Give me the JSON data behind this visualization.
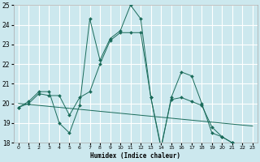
{
  "xlabel": "Humidex (Indice chaleur)",
  "background_color": "#cce8ee",
  "grid_color": "#ffffff",
  "line_color": "#1a6b5a",
  "x_values": [
    0,
    1,
    2,
    3,
    4,
    5,
    6,
    7,
    8,
    9,
    10,
    11,
    12,
    13,
    14,
    15,
    16,
    17,
    18,
    19,
    20,
    21,
    22,
    23
  ],
  "line1_y": [
    19.8,
    20.1,
    20.6,
    20.6,
    19.0,
    18.5,
    19.9,
    24.3,
    22.2,
    23.3,
    23.7,
    25.0,
    24.3,
    20.3,
    17.7,
    20.3,
    21.6,
    21.4,
    20.0,
    18.5,
    18.3,
    18.0,
    17.9,
    17.8
  ],
  "line2_y": [
    19.8,
    20.0,
    20.5,
    20.4,
    20.4,
    19.4,
    20.3,
    20.6,
    22.0,
    23.2,
    23.6,
    23.6,
    23.6,
    20.3,
    17.8,
    20.2,
    20.3,
    20.1,
    19.9,
    18.8,
    18.3,
    18.0,
    17.9,
    17.8
  ],
  "line3_y": [
    20.0,
    19.95,
    19.9,
    19.85,
    19.8,
    19.75,
    19.7,
    19.65,
    19.6,
    19.55,
    19.5,
    19.45,
    19.4,
    19.35,
    19.3,
    19.25,
    19.2,
    19.15,
    19.1,
    19.05,
    19.0,
    18.95,
    18.9,
    18.85
  ],
  "ylim": [
    18,
    25
  ],
  "xlim": [
    -0.5,
    23.5
  ],
  "yticks": [
    18,
    19,
    20,
    21,
    22,
    23,
    24,
    25
  ],
  "xticks": [
    0,
    1,
    2,
    3,
    4,
    5,
    6,
    7,
    8,
    9,
    10,
    11,
    12,
    13,
    14,
    15,
    16,
    17,
    18,
    19,
    20,
    21,
    22,
    23
  ]
}
